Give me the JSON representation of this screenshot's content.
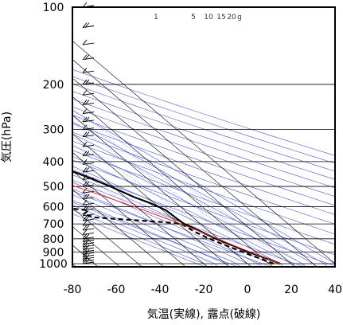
{
  "chart_data": {
    "type": "line",
    "title": "",
    "xlabel": "気温(実線), 露点(破線)",
    "ylabel": "気圧(hPa)",
    "x_axis": {
      "min": -80,
      "max": 40,
      "ticks": [
        -80,
        -60,
        -40,
        -20,
        0,
        20,
        40
      ]
    },
    "y_axis": {
      "min": 1050,
      "max": 100,
      "scale": "log",
      "ticks": [
        100,
        200,
        300,
        400,
        500,
        600,
        700,
        800,
        900,
        1000
      ]
    },
    "mixing_ratio_labels": [
      "1",
      "5",
      "10",
      "15",
      "20",
      "g"
    ],
    "grid": true,
    "series": [
      {
        "role": "temperature",
        "style": "solid",
        "color": "#000000",
        "points": [
          [
            1000,
            15
          ],
          [
            960,
            12
          ],
          [
            925,
            9
          ],
          [
            900,
            6.5
          ],
          [
            850,
            3
          ],
          [
            800,
            -1
          ],
          [
            750,
            -4
          ],
          [
            720,
            -6
          ],
          [
            700,
            -7.5
          ],
          [
            670,
            -8
          ],
          [
            620,
            -8.5
          ],
          [
            600,
            -10
          ],
          [
            580,
            -12
          ],
          [
            550,
            -16
          ],
          [
            500,
            -21
          ],
          [
            450,
            -28
          ],
          [
            400,
            -37
          ],
          [
            380,
            -41
          ],
          [
            350,
            -45
          ],
          [
            330,
            -49
          ],
          [
            300,
            -51
          ],
          [
            270,
            -55
          ],
          [
            250,
            -56
          ],
          [
            230,
            -58
          ],
          [
            200,
            -59
          ],
          [
            180,
            -59
          ],
          [
            150,
            -60
          ],
          [
            120,
            -61
          ],
          [
            110,
            -62
          ],
          [
            100,
            -63
          ]
        ]
      },
      {
        "role": "dewpoint",
        "style": "dashed",
        "color": "#000000",
        "points": [
          [
            1000,
            12
          ],
          [
            960,
            9
          ],
          [
            925,
            6
          ],
          [
            900,
            4
          ],
          [
            850,
            0
          ],
          [
            800,
            -4
          ],
          [
            750,
            -7
          ],
          [
            720,
            -8
          ],
          [
            700,
            -9
          ],
          [
            690,
            -15
          ],
          [
            680,
            -25
          ],
          [
            670,
            -35
          ],
          [
            660,
            -45
          ],
          [
            640,
            -48
          ],
          [
            620,
            -44
          ],
          [
            600,
            -57
          ],
          [
            590,
            -60
          ],
          [
            580,
            -50
          ],
          [
            560,
            -46
          ],
          [
            540,
            -44
          ],
          [
            520,
            -43
          ],
          [
            500,
            -42
          ],
          [
            480,
            -42
          ],
          [
            460,
            -44
          ],
          [
            440,
            -46
          ],
          [
            420,
            -45
          ],
          [
            400,
            -44
          ],
          [
            390,
            -48
          ],
          [
            380,
            -52
          ],
          [
            370,
            -58
          ],
          [
            350,
            -64
          ],
          [
            340,
            -66
          ],
          [
            330,
            -70
          ]
        ]
      },
      {
        "role": "parcel",
        "style": "solid",
        "color": "#e8231e",
        "points": [
          [
            1000,
            15
          ],
          [
            900,
            7.5
          ],
          [
            850,
            3.5
          ],
          [
            800,
            0
          ],
          [
            700,
            -9
          ],
          [
            600,
            -21
          ],
          [
            500,
            -37
          ],
          [
            400,
            -58
          ],
          [
            300,
            -90
          ],
          [
            250,
            -110
          ],
          [
            200,
            -150
          ]
        ]
      }
    ],
    "reference_lines": {
      "dry_adiabat_theta_K": [
        250,
        265,
        280,
        295,
        310,
        325,
        340,
        355,
        370,
        385,
        400,
        415,
        430,
        445,
        460,
        475,
        490
      ],
      "moist_adiabat_theta_w_C": [
        -20,
        -15,
        -10,
        -5,
        0,
        5,
        10,
        15,
        20,
        25,
        30,
        35,
        40
      ],
      "mixing_ratio_g_per_kg": [
        1,
        5,
        10,
        15,
        20
      ]
    },
    "wind_barbs": {
      "pressure_levels_hPa": [
        1000,
        980,
        960,
        940,
        920,
        900,
        880,
        860,
        840,
        820,
        800,
        770,
        740,
        710,
        680,
        650,
        620,
        590,
        560,
        530,
        500,
        470,
        440,
        410,
        380,
        350,
        320,
        300,
        280,
        260,
        240,
        220,
        200,
        180,
        160,
        140,
        120,
        100
      ]
    }
  }
}
